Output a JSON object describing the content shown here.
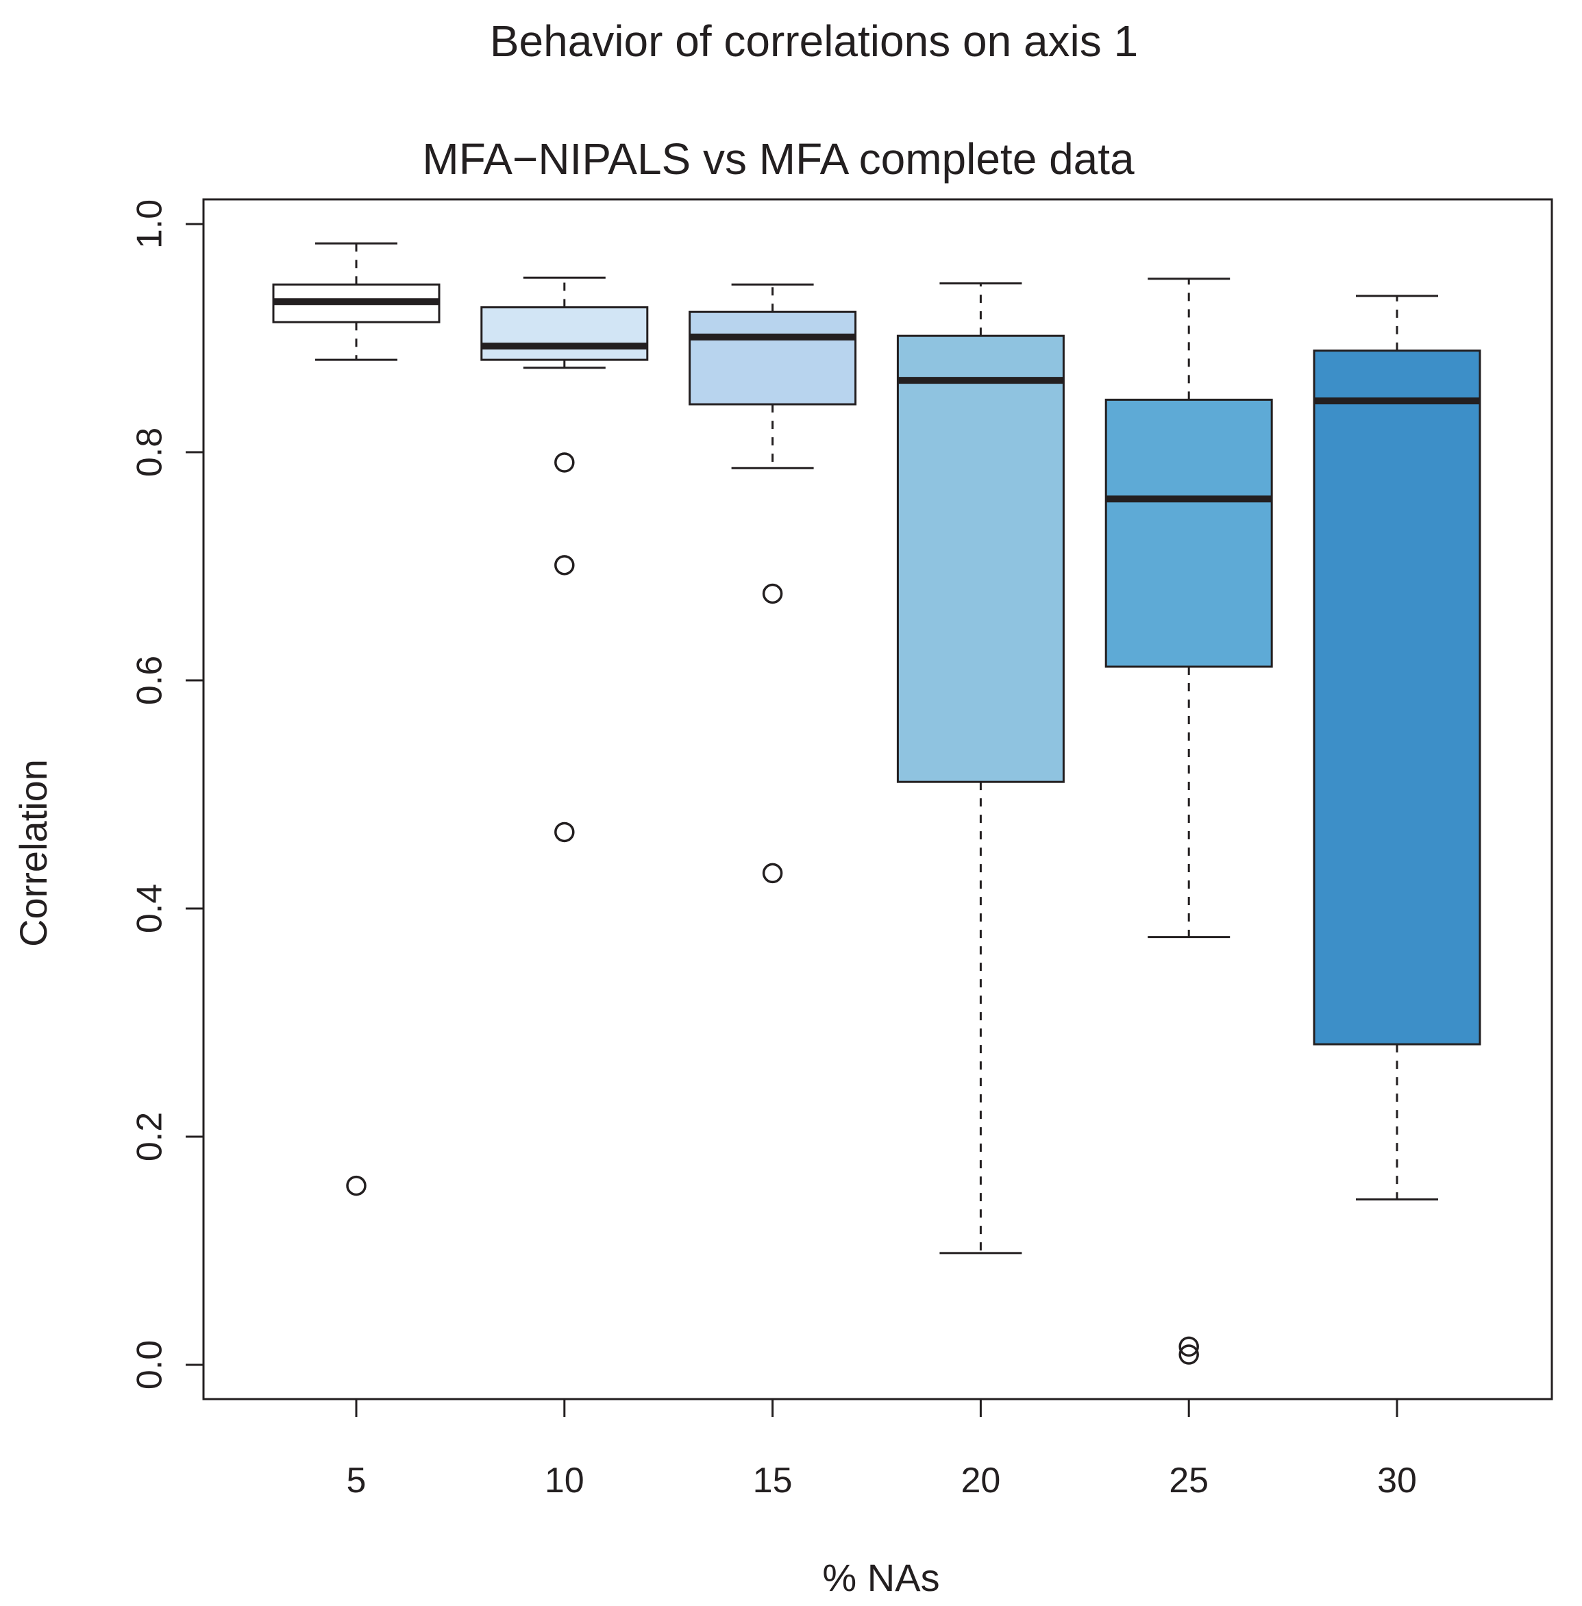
{
  "chart_data": {
    "type": "boxplot",
    "title": "Behavior of correlations on axis 1",
    "subtitle": "MFA−NIPALS vs MFA complete data",
    "xlabel": "% NAs",
    "ylabel": "Correlation",
    "categories": [
      "5",
      "10",
      "15",
      "20",
      "25",
      "30"
    ],
    "ylim": [
      -0.03,
      1.03
    ],
    "yticks": [
      "0.0",
      "0.2",
      "0.4",
      "0.6",
      "0.8",
      "1.0"
    ],
    "grid": false,
    "boxes": [
      {
        "category": "5",
        "whisker_low": 0.881,
        "q1": 0.914,
        "median": 0.932,
        "q3": 0.947,
        "whisker_high": 0.983,
        "outliers": [
          0.157
        ],
        "color": "#ffffff"
      },
      {
        "category": "10",
        "whisker_low": 0.874,
        "q1": 0.881,
        "median": 0.893,
        "q3": 0.927,
        "whisker_high": 0.953,
        "outliers": [
          0.791,
          0.701,
          0.467
        ],
        "color": "#d2e5f5"
      },
      {
        "category": "15",
        "whisker_low": 0.786,
        "q1": 0.842,
        "median": 0.901,
        "q3": 0.923,
        "whisker_high": 0.947,
        "outliers": [
          0.676,
          0.431
        ],
        "color": "#b8d4ee"
      },
      {
        "category": "20",
        "whisker_low": 0.098,
        "q1": 0.511,
        "median": 0.863,
        "q3": 0.902,
        "whisker_high": 0.948,
        "outliers": [],
        "color": "#8fc3e0"
      },
      {
        "category": "25",
        "whisker_low": 0.375,
        "q1": 0.612,
        "median": 0.759,
        "q3": 0.846,
        "whisker_high": 0.952,
        "outliers": [
          0.016,
          0.009
        ],
        "color": "#5eaad6"
      },
      {
        "category": "30",
        "whisker_low": 0.145,
        "q1": 0.281,
        "median": 0.845,
        "q3": 0.889,
        "whisker_high": 0.937,
        "outliers": [],
        "color": "#3d8fc8"
      }
    ]
  }
}
